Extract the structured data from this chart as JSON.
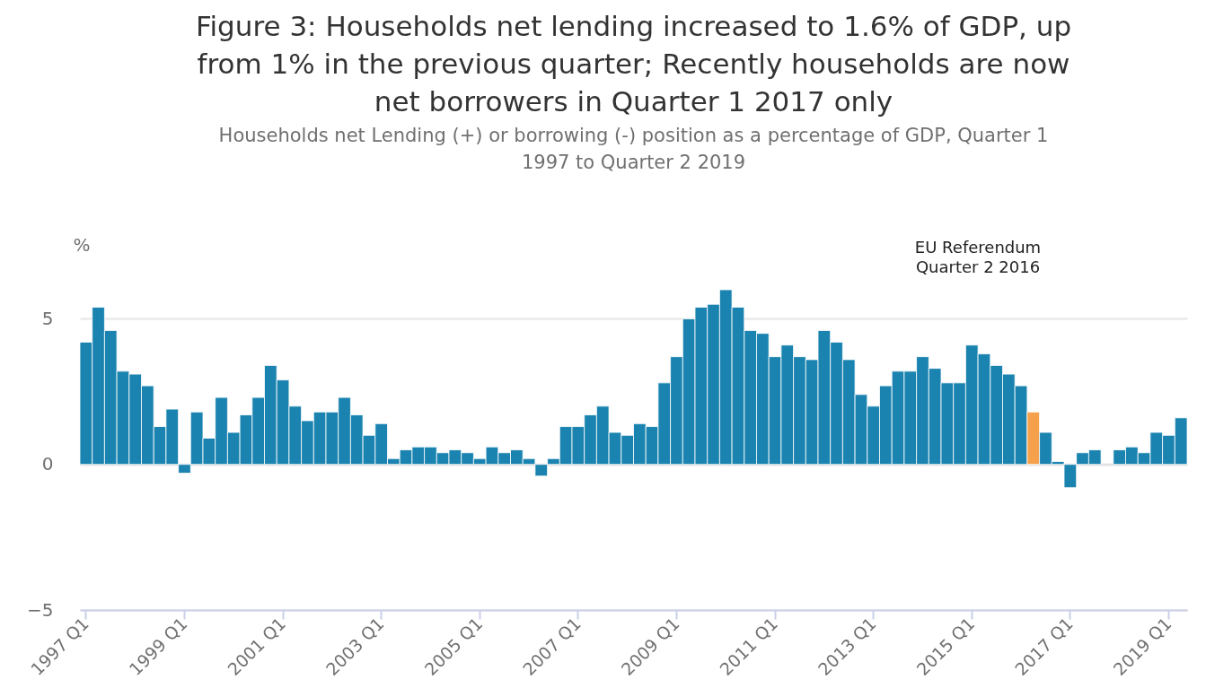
{
  "chart_data": {
    "type": "bar",
    "title": "Figure 3: Households net lending increased to 1.6% of GDP, up from 1% in the previous quarter; Recently households are now net borrowers in Quarter 1 2017 only",
    "subtitle": "Households net Lending (+) or borrowing (-) position as a percentage of GDP, Quarter 1 1997 to Quarter 2 2019",
    "ylabel": "%",
    "categories": [
      "1997 Q1",
      null,
      null,
      null,
      null,
      null,
      null,
      null,
      "1999 Q1",
      null,
      null,
      null,
      null,
      null,
      null,
      null,
      "2001 Q1",
      null,
      null,
      null,
      null,
      null,
      null,
      null,
      "2003 Q1",
      null,
      null,
      null,
      null,
      null,
      null,
      null,
      "2005 Q1",
      null,
      null,
      null,
      null,
      null,
      null,
      null,
      "2007 Q1",
      null,
      null,
      null,
      null,
      null,
      null,
      null,
      "2009 Q1",
      null,
      null,
      null,
      null,
      null,
      null,
      null,
      "2011 Q1",
      null,
      null,
      null,
      null,
      null,
      null,
      null,
      "2013 Q1",
      null,
      null,
      null,
      null,
      null,
      null,
      null,
      "2015 Q1",
      null,
      null,
      null,
      null,
      null,
      null,
      null,
      "2017 Q1",
      null,
      null,
      null,
      null,
      null,
      null,
      null,
      "2019 Q1",
      null
    ],
    "values": [
      4.2,
      5.4,
      4.6,
      3.2,
      3.1,
      2.7,
      1.3,
      1.9,
      -0.3,
      1.8,
      0.9,
      2.3,
      1.1,
      1.7,
      2.3,
      3.4,
      2.9,
      2.0,
      1.5,
      1.8,
      1.8,
      2.3,
      1.7,
      1.0,
      1.4,
      0.2,
      0.5,
      0.6,
      0.6,
      0.4,
      0.5,
      0.4,
      0.2,
      0.6,
      0.4,
      0.5,
      0.2,
      -0.4,
      0.2,
      1.3,
      1.3,
      1.7,
      2.0,
      1.1,
      1.0,
      1.4,
      1.3,
      2.8,
      3.7,
      5.0,
      5.4,
      5.5,
      6.0,
      5.4,
      4.6,
      4.5,
      3.7,
      4.1,
      3.7,
      3.6,
      4.6,
      4.2,
      3.6,
      2.4,
      2.0,
      2.7,
      3.2,
      3.2,
      3.7,
      3.3,
      2.8,
      2.8,
      4.1,
      3.8,
      3.4,
      3.1,
      2.7,
      1.8,
      1.1,
      0.1,
      -0.8,
      0.4,
      0.5,
      null,
      0.5,
      0.6,
      0.4,
      1.1,
      1.0,
      1.6
    ],
    "colors": [
      "#1a83b0",
      "#1a83b0",
      "#1a83b0",
      "#1a83b0",
      "#1a83b0",
      "#1a83b0",
      "#1a83b0",
      "#1a83b0",
      "#1a83b0",
      "#1a83b0",
      "#1a83b0",
      "#1a83b0",
      "#1a83b0",
      "#1a83b0",
      "#1a83b0",
      "#1a83b0",
      "#1a83b0",
      "#1a83b0",
      "#1a83b0",
      "#1a83b0",
      "#1a83b0",
      "#1a83b0",
      "#1a83b0",
      "#1a83b0",
      "#1a83b0",
      "#1a83b0",
      "#1a83b0",
      "#1a83b0",
      "#1a83b0",
      "#1a83b0",
      "#1a83b0",
      "#1a83b0",
      "#1a83b0",
      "#1a83b0",
      "#1a83b0",
      "#1a83b0",
      "#1a83b0",
      "#1a83b0",
      "#1a83b0",
      "#1a83b0",
      "#1a83b0",
      "#1a83b0",
      "#1a83b0",
      "#1a83b0",
      "#1a83b0",
      "#1a83b0",
      "#1a83b0",
      "#1a83b0",
      "#1a83b0",
      "#1a83b0",
      "#1a83b0",
      "#1a83b0",
      "#1a83b0",
      "#1a83b0",
      "#1a83b0",
      "#1a83b0",
      "#1a83b0",
      "#1a83b0",
      "#1a83b0",
      "#1a83b0",
      "#1a83b0",
      "#1a83b0",
      "#1a83b0",
      "#1a83b0",
      "#1a83b0",
      "#1a83b0",
      "#1a83b0",
      "#1a83b0",
      "#1a83b0",
      "#1a83b0",
      "#1a83b0",
      "#1a83b0",
      "#1a83b0",
      "#1a83b0",
      "#1a83b0",
      "#1a83b0",
      "#1a83b0",
      "#f5a04a",
      "#1a83b0",
      "#1a83b0",
      "#1a83b0",
      "#1a83b0",
      "#1a83b0",
      "#1a83b0",
      "#1a83b0",
      "#1a83b0",
      "#1a83b0",
      "#1a83b0",
      "#1a83b0",
      "#1a83b0"
    ],
    "ylim": [
      -5,
      6
    ],
    "yticks": [
      -5,
      0,
      5
    ],
    "grid": "y",
    "annotations": [
      "EU Referendum Quarter 2 2016"
    ]
  }
}
